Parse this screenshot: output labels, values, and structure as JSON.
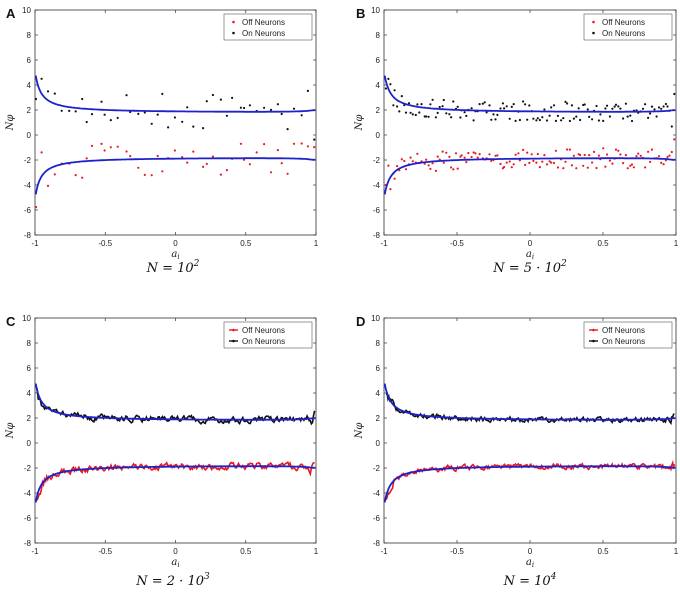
{
  "chart_data": [
    {
      "type": "scatter",
      "panel_label": "A",
      "caption_prefix": "N = 10",
      "caption_sup": "2",
      "xlabel": "a",
      "xlabel_sub": "i",
      "ylabel": "Nφ",
      "xlim": [
        -1,
        1
      ],
      "ylim": [
        -8,
        10
      ],
      "xticks": [
        "-1",
        "-0.5",
        "0",
        "0.5",
        "1"
      ],
      "yticks": [
        "-8",
        "-6",
        "-4",
        "-2",
        "0",
        "2",
        "4",
        "6",
        "8",
        "10"
      ],
      "legend": [
        "Off Neurons",
        "On Neurons"
      ],
      "density": 45,
      "noise": 1.4,
      "jitter_x": 0.015,
      "seed": 11
    },
    {
      "type": "scatter",
      "panel_label": "B",
      "caption_prefix": "N = 5 · 10",
      "caption_sup": "2",
      "xlabel": "a",
      "xlabel_sub": "i",
      "ylabel": "Nφ",
      "xlim": [
        -1,
        1
      ],
      "ylim": [
        -8,
        10
      ],
      "xticks": [
        "-1",
        "-0.5",
        "0",
        "0.5",
        "1"
      ],
      "yticks": [
        "-8",
        "-6",
        "-4",
        "-2",
        "0",
        "2",
        "4",
        "6",
        "8",
        "10"
      ],
      "legend": [
        "Off Neurons",
        "On Neurons"
      ],
      "density": 130,
      "noise": 0.8,
      "jitter_x": 0.004,
      "seed": 23
    },
    {
      "type": "line",
      "panel_label": "C",
      "caption_prefix": "N = 2 · 10",
      "caption_sup": "3",
      "xlabel": "a",
      "xlabel_sub": "i",
      "ylabel": "Nφ",
      "xlim": [
        -1,
        1
      ],
      "ylim": [
        -8,
        10
      ],
      "xticks": [
        "-1",
        "-0.5",
        "0",
        "0.5",
        "1"
      ],
      "yticks": [
        "-8",
        "-6",
        "-4",
        "-2",
        "0",
        "2",
        "4",
        "6",
        "8",
        "10"
      ],
      "legend": [
        "Off Neurons",
        "On Neurons"
      ],
      "density": 260,
      "noise": 0.45,
      "jitter_x": 0.0,
      "seed": 37
    },
    {
      "type": "line",
      "panel_label": "D",
      "caption_prefix": "N = 10",
      "caption_sup": "4",
      "xlabel": "a",
      "xlabel_sub": "i",
      "ylabel": "Nφ",
      "xlim": [
        -1,
        1
      ],
      "ylim": [
        -8,
        10
      ],
      "xticks": [
        "-1",
        "-0.5",
        "0",
        "0.5",
        "1"
      ],
      "yticks": [
        "-8",
        "-6",
        "-4",
        "-2",
        "0",
        "2",
        "4",
        "6",
        "8",
        "10"
      ],
      "legend": [
        "Off Neurons",
        "On Neurons"
      ],
      "density": 320,
      "noise": 0.35,
      "jitter_x": 0.0,
      "seed": 53
    }
  ],
  "colors": {
    "off": "#e8191d",
    "on": "#111111",
    "theory": "#1d22c9",
    "axis": "#333333"
  }
}
